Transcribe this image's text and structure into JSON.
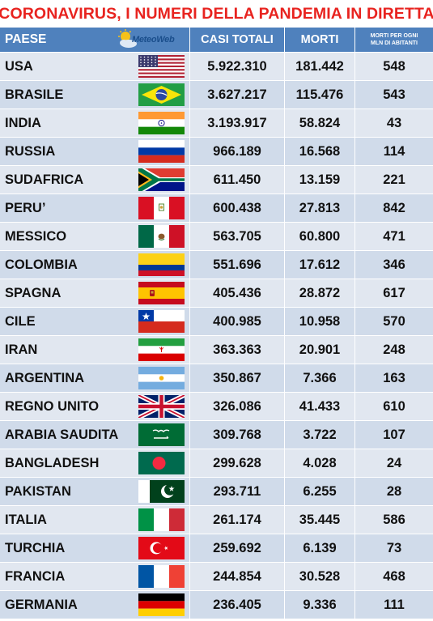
{
  "title": "CORONAVIRUS, I NUMERI DELLA PANDEMIA IN DIRETTA",
  "logo": "MeteoWeb",
  "header": {
    "country": "PAESE",
    "cases": "CASI TOTALI",
    "deaths": "MORTI",
    "per_million_line1": "MORTI PER OGNI",
    "per_million_line2": "MLN DI ABITANTI"
  },
  "colors": {
    "title": "#e8231f",
    "header_bg": "#4f81bd",
    "row_bg": "#e1e7f0",
    "row_bg_alt": "#d0dbea"
  },
  "chart_data": {
    "type": "table",
    "title": "CORONAVIRUS, I NUMERI DELLA PANDEMIA IN DIRETTA",
    "columns": [
      "PAESE",
      "CASI TOTALI",
      "MORTI",
      "MORTI PER OGNI MLN DI ABITANTI"
    ],
    "rows": [
      {
        "country": "USA",
        "flag": "usa-flag-icon",
        "cases": "5.922.310",
        "deaths": "181.442",
        "per_million": "548"
      },
      {
        "country": "BRASILE",
        "flag": "brazil-flag-icon",
        "cases": "3.627.217",
        "deaths": "115.476",
        "per_million": "543"
      },
      {
        "country": "INDIA",
        "flag": "india-flag-icon",
        "cases": "3.193.917",
        "deaths": "58.824",
        "per_million": "43"
      },
      {
        "country": "RUSSIA",
        "flag": "russia-flag-icon",
        "cases": "966.189",
        "deaths": "16.568",
        "per_million": "114"
      },
      {
        "country": "SUDAFRICA",
        "flag": "south-africa-flag-icon",
        "cases": "611.450",
        "deaths": "13.159",
        "per_million": "221"
      },
      {
        "country": "PERU’",
        "flag": "peru-flag-icon",
        "cases": "600.438",
        "deaths": "27.813",
        "per_million": "842"
      },
      {
        "country": "MESSICO",
        "flag": "mexico-flag-icon",
        "cases": "563.705",
        "deaths": "60.800",
        "per_million": "471"
      },
      {
        "country": "COLOMBIA",
        "flag": "colombia-flag-icon",
        "cases": "551.696",
        "deaths": "17.612",
        "per_million": "346"
      },
      {
        "country": "SPAGNA",
        "flag": "spain-flag-icon",
        "cases": "405.436",
        "deaths": "28.872",
        "per_million": "617"
      },
      {
        "country": "CILE",
        "flag": "chile-flag-icon",
        "cases": "400.985",
        "deaths": "10.958",
        "per_million": "570"
      },
      {
        "country": "IRAN",
        "flag": "iran-flag-icon",
        "cases": "363.363",
        "deaths": "20.901",
        "per_million": "248"
      },
      {
        "country": "ARGENTINA",
        "flag": "argentina-flag-icon",
        "cases": "350.867",
        "deaths": "7.366",
        "per_million": "163"
      },
      {
        "country": "REGNO UNITO",
        "flag": "uk-flag-icon",
        "cases": "326.086",
        "deaths": "41.433",
        "per_million": "610"
      },
      {
        "country": "ARABIA SAUDITA",
        "flag": "saudi-arabia-flag-icon",
        "cases": "309.768",
        "deaths": "3.722",
        "per_million": "107"
      },
      {
        "country": "BANGLADESH",
        "flag": "bangladesh-flag-icon",
        "cases": "299.628",
        "deaths": "4.028",
        "per_million": "24"
      },
      {
        "country": "PAKISTAN",
        "flag": "pakistan-flag-icon",
        "cases": "293.711",
        "deaths": "6.255",
        "per_million": "28"
      },
      {
        "country": "ITALIA",
        "flag": "italy-flag-icon",
        "cases": "261.174",
        "deaths": "35.445",
        "per_million": "586"
      },
      {
        "country": "TURCHIA",
        "flag": "turkey-flag-icon",
        "cases": "259.692",
        "deaths": "6.139",
        "per_million": "73"
      },
      {
        "country": "FRANCIA",
        "flag": "france-flag-icon",
        "cases": "244.854",
        "deaths": "30.528",
        "per_million": "468"
      },
      {
        "country": "GERMANIA",
        "flag": "germany-flag-icon",
        "cases": "236.405",
        "deaths": "9.336",
        "per_million": "111"
      }
    ]
  }
}
